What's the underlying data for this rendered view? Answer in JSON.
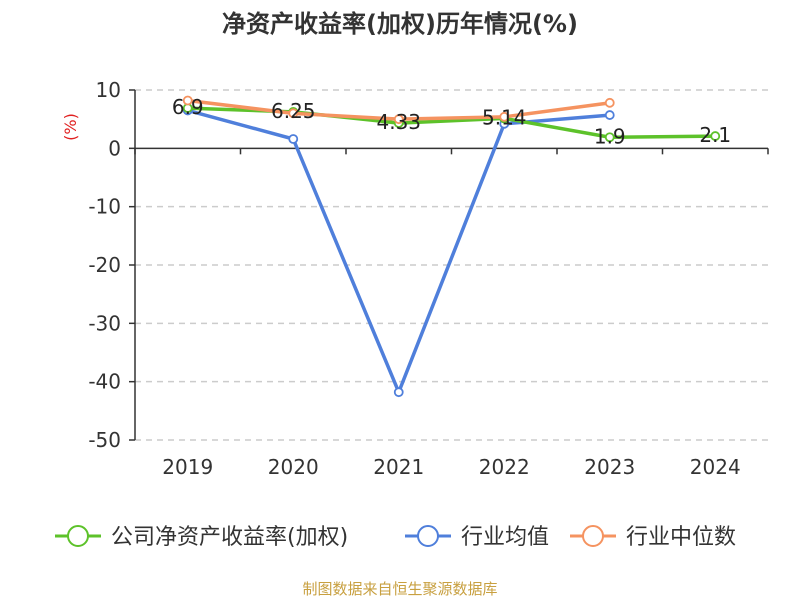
{
  "chart_data": {
    "type": "line",
    "title": "净资产收益率(加权)历年情况(%)",
    "ylabel": "(%)",
    "categories": [
      "2019",
      "2020",
      "2021",
      "2022",
      "2023",
      "2024"
    ],
    "ylim": [
      -50,
      10
    ],
    "yticks": [
      10,
      0,
      -10,
      -20,
      -30,
      -40,
      -50
    ],
    "grid": true,
    "legend_position": "bottom",
    "series": [
      {
        "name": "公司净资产收益率(加权)",
        "color": "#5dc22a",
        "values": [
          6.9,
          6.25,
          4.33,
          5.14,
          1.9,
          2.1
        ],
        "data_labels": [
          "6.9",
          "6.25",
          "4.33",
          "5.14",
          "1.9",
          "2.1"
        ]
      },
      {
        "name": "行业均值",
        "color": "#4f7fdb",
        "values": [
          6.5,
          1.6,
          -41.8,
          4.2,
          5.7,
          null
        ]
      },
      {
        "name": "行业中位数",
        "color": "#f59360",
        "values": [
          8.2,
          6.0,
          5.0,
          5.4,
          7.8,
          null
        ]
      }
    ]
  },
  "source": "制图数据来自恒生聚源数据库"
}
